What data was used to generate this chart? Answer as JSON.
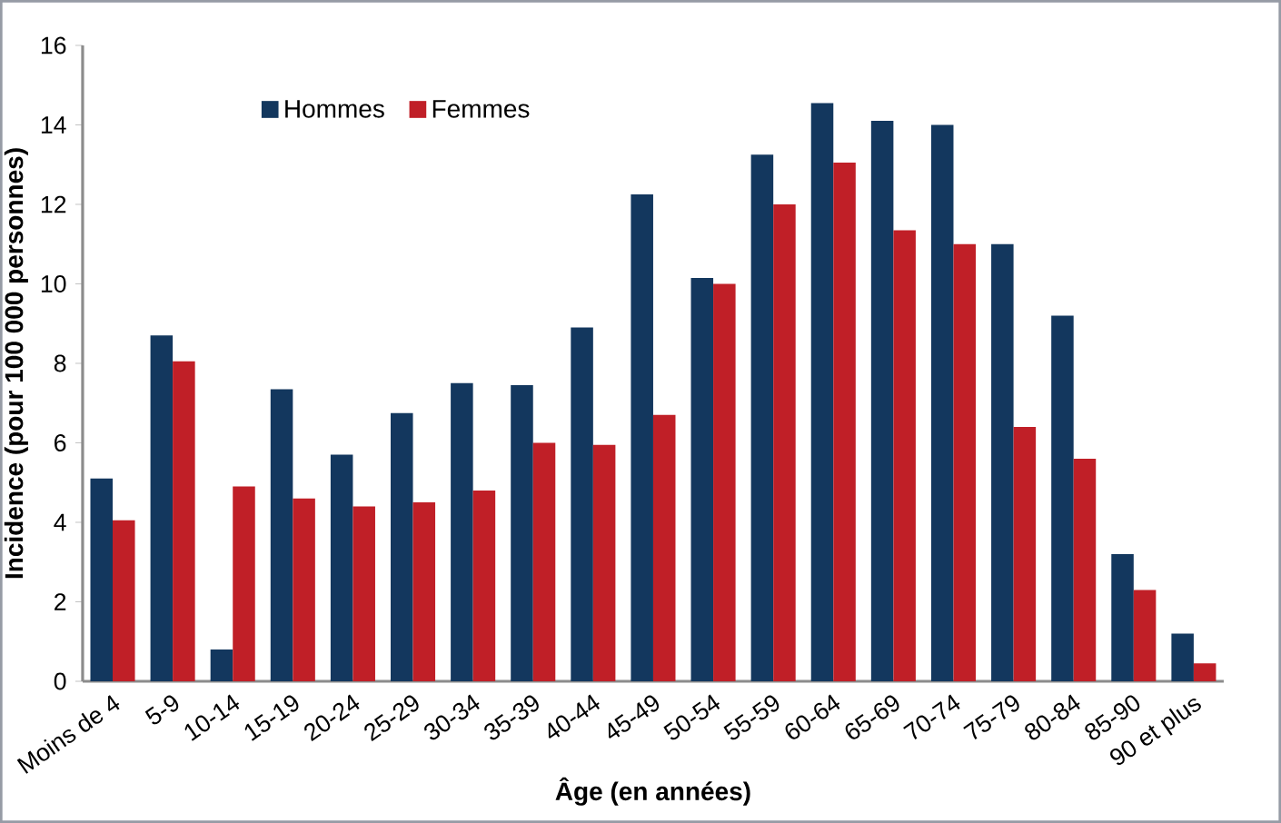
{
  "chart_data": {
    "type": "bar",
    "xlabel": "Âge (en années)",
    "ylabel": "Incidence (pour 100 000 personnes)",
    "categories": [
      "Moins de 4",
      "5-9",
      "10-14",
      "15-19",
      "20-24",
      "25-29",
      "30-34",
      "35-39",
      "40-44",
      "45-49",
      "50-54",
      "55-59",
      "60-64",
      "65-69",
      "70-74",
      "75-79",
      "80-84",
      "85-90",
      "90 et plus"
    ],
    "series": [
      {
        "name": "Hommes",
        "color": "#13375e",
        "values": [
          5.1,
          8.7,
          0.8,
          7.35,
          5.7,
          6.75,
          7.5,
          7.45,
          8.9,
          12.25,
          10.15,
          13.25,
          14.55,
          14.1,
          14.0,
          11.0,
          9.2,
          3.2,
          1.2
        ]
      },
      {
        "name": "Femmes",
        "color": "#c01f27",
        "values": [
          4.05,
          8.05,
          4.9,
          4.6,
          4.4,
          4.5,
          4.8,
          6.0,
          5.95,
          6.7,
          10.0,
          12.0,
          13.05,
          11.35,
          11.0,
          6.4,
          5.6,
          2.3,
          0.45
        ]
      }
    ],
    "ylim": [
      0,
      16
    ],
    "yticks": [
      0,
      2,
      4,
      6,
      8,
      10,
      12,
      14,
      16
    ],
    "legend": "top left"
  }
}
